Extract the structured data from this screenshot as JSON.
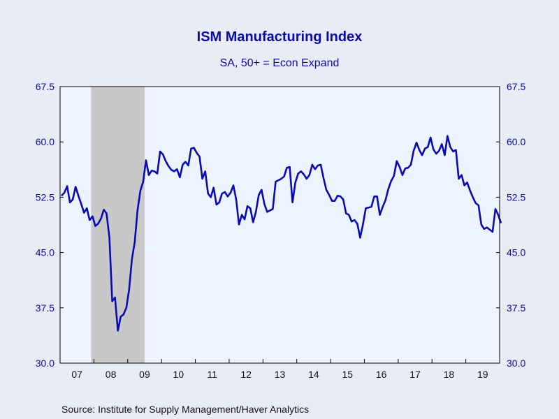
{
  "chart_data": {
    "type": "line",
    "title": "ISM Manufacturing Index",
    "subtitle": "SA, 50+ = Econ Expand",
    "source": "Source:  Institute for Supply Management/Haver Analytics",
    "ylim": [
      30.0,
      67.5
    ],
    "yticks": [
      "30.0",
      "37.5",
      "45.0",
      "52.5",
      "60.0",
      "67.5"
    ],
    "ytick_values": [
      30.0,
      37.5,
      45.0,
      52.5,
      60.0,
      67.5
    ],
    "x_start": "2007-01",
    "x_end": "2019-12",
    "xtick_labels": [
      "07",
      "08",
      "09",
      "10",
      "11",
      "12",
      "13",
      "14",
      "15",
      "16",
      "17",
      "18",
      "19"
    ],
    "recession": {
      "start": "2007-12",
      "end": "2009-06"
    },
    "colors": {
      "line": "#0a0ab4",
      "plot_bg": "#eef4ff",
      "recession": "#c8c8c8",
      "axis_text": "#0a0aa8",
      "frame": "#000000"
    },
    "series": [
      {
        "values": [
          52.7,
          53.1,
          54.0,
          51.8,
          52.2,
          53.9,
          52.7,
          51.6,
          50.4,
          51.0,
          49.4,
          49.9,
          48.6,
          48.9,
          49.6,
          50.8,
          50.3,
          47.0,
          38.4,
          38.9,
          34.4,
          36.3,
          36.6,
          37.5,
          40.0,
          44.1,
          46.4,
          50.8,
          53.4,
          54.6,
          57.5,
          55.5,
          56.1,
          56.0,
          55.7,
          58.7,
          58.3,
          57.4,
          56.7,
          56.2,
          56.0,
          56.3,
          55.2,
          56.9,
          57.3,
          56.8,
          59.1,
          59.2,
          58.5,
          58.0,
          55.0,
          56.0,
          53.0,
          52.5,
          53.8,
          51.5,
          51.8,
          53.0,
          53.2,
          52.6,
          53.1,
          54.1,
          52.2,
          48.8,
          50.1,
          49.5,
          51.3,
          51.0,
          49.1,
          50.5,
          52.8,
          53.5,
          51.6,
          50.5,
          50.7,
          50.9,
          54.6,
          54.8,
          55.0,
          55.3,
          56.5,
          56.6,
          51.8,
          54.5,
          55.7,
          56.0,
          55.6,
          55.0,
          55.5,
          56.9,
          56.3,
          56.8,
          56.9,
          55.1,
          53.5,
          52.8,
          52.0,
          52.0,
          52.7,
          52.6,
          52.2,
          50.3,
          50.1,
          49.2,
          49.4,
          48.9,
          47.0,
          48.8,
          51.0,
          51.1,
          51.2,
          52.6,
          52.6,
          50.1,
          51.2,
          52.1,
          53.6,
          54.7,
          55.4,
          57.4,
          56.6,
          55.5,
          56.4,
          56.5,
          56.9,
          58.8,
          59.9,
          58.9,
          58.2,
          59.1,
          59.3,
          60.6,
          59.0,
          58.4,
          58.8,
          59.7,
          58.2,
          60.8,
          59.3,
          58.7,
          58.9,
          55.0,
          55.5,
          54.1,
          54.5,
          53.4,
          52.5,
          51.7,
          51.4,
          48.8,
          48.2,
          48.4,
          48.1,
          47.8,
          50.9,
          50.1,
          49.0
        ]
      }
    ]
  }
}
